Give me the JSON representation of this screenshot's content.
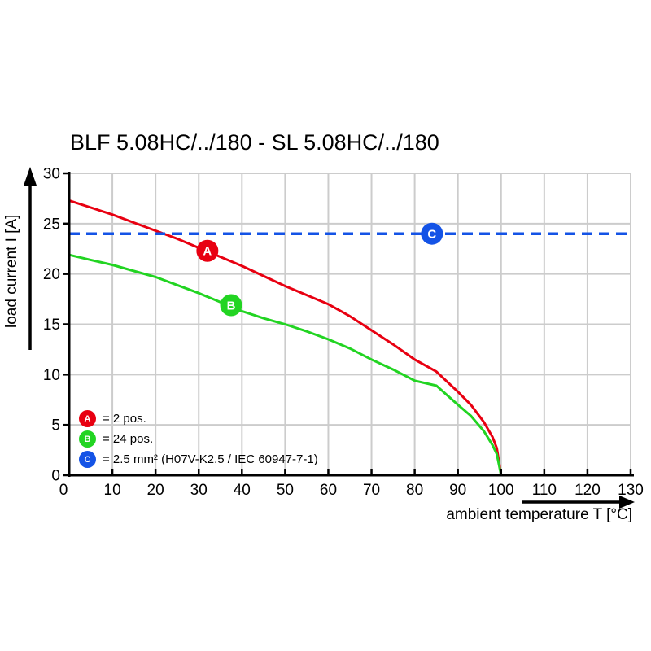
{
  "chart_data": {
    "type": "line",
    "title": "BLF 5.08HC/../180 - SL 5.08HC/../180",
    "xlabel": "ambient temperature T [°C]",
    "ylabel": "load current I [A]",
    "xlim": [
      0,
      130
    ],
    "ylim": [
      0,
      30
    ],
    "x_ticks": [
      0,
      10,
      20,
      30,
      40,
      50,
      60,
      70,
      80,
      90,
      100,
      110,
      120,
      130
    ],
    "y_ticks": [
      0,
      5,
      10,
      15,
      20,
      25,
      30
    ],
    "grid": true,
    "legend_position": "lower-left",
    "colors": {
      "red": "#e80011",
      "green": "#22d422",
      "blue": "#1453e6",
      "grid": "#cccccc",
      "axis": "#000000"
    },
    "series": [
      {
        "key": "A",
        "label": "2 pos.",
        "color_key": "red",
        "line_style": "solid",
        "x": [
          0,
          5,
          10,
          15,
          20,
          25,
          30,
          35,
          40,
          45,
          50,
          55,
          60,
          65,
          70,
          75,
          80,
          85,
          90,
          93,
          96,
          98,
          99,
          100
        ],
        "y": [
          27.3,
          26.6,
          25.9,
          25.1,
          24.3,
          23.5,
          22.6,
          21.7,
          20.8,
          19.8,
          18.8,
          17.9,
          17.0,
          15.8,
          14.4,
          13.0,
          11.5,
          10.3,
          8.3,
          7.0,
          5.3,
          3.8,
          2.7,
          0
        ],
        "marker": {
          "letter": "A",
          "x": 32,
          "y": 22.3
        }
      },
      {
        "key": "B",
        "label": "24 pos.",
        "color_key": "green",
        "line_style": "solid",
        "x": [
          0,
          5,
          10,
          15,
          20,
          25,
          30,
          35,
          40,
          45,
          50,
          55,
          60,
          65,
          70,
          75,
          80,
          85,
          90,
          93,
          96,
          98,
          99,
          100
        ],
        "y": [
          21.9,
          21.4,
          20.9,
          20.3,
          19.7,
          18.9,
          18.1,
          17.2,
          16.3,
          15.6,
          15.0,
          14.3,
          13.5,
          12.6,
          11.5,
          10.5,
          9.4,
          8.9,
          7.0,
          5.9,
          4.4,
          3.0,
          2.1,
          0
        ],
        "marker": {
          "letter": "B",
          "x": 37.5,
          "y": 16.9
        }
      },
      {
        "key": "C",
        "label": "2.5 mm² (H07V-K2.5 / IEC 60947-7-1)",
        "color_key": "blue",
        "line_style": "dashed",
        "x": [
          0,
          130
        ],
        "y": [
          24,
          24
        ],
        "marker": {
          "letter": "C",
          "x": 84,
          "y": 24
        }
      }
    ],
    "legend": [
      {
        "letter": "A",
        "color_key": "red",
        "label": "= 2 pos."
      },
      {
        "letter": "B",
        "color_key": "green",
        "label": "= 24 pos."
      },
      {
        "letter": "C",
        "color_key": "blue",
        "label": "= 2.5 mm² (H07V-K2.5 / IEC 60947-7-1)"
      }
    ]
  }
}
